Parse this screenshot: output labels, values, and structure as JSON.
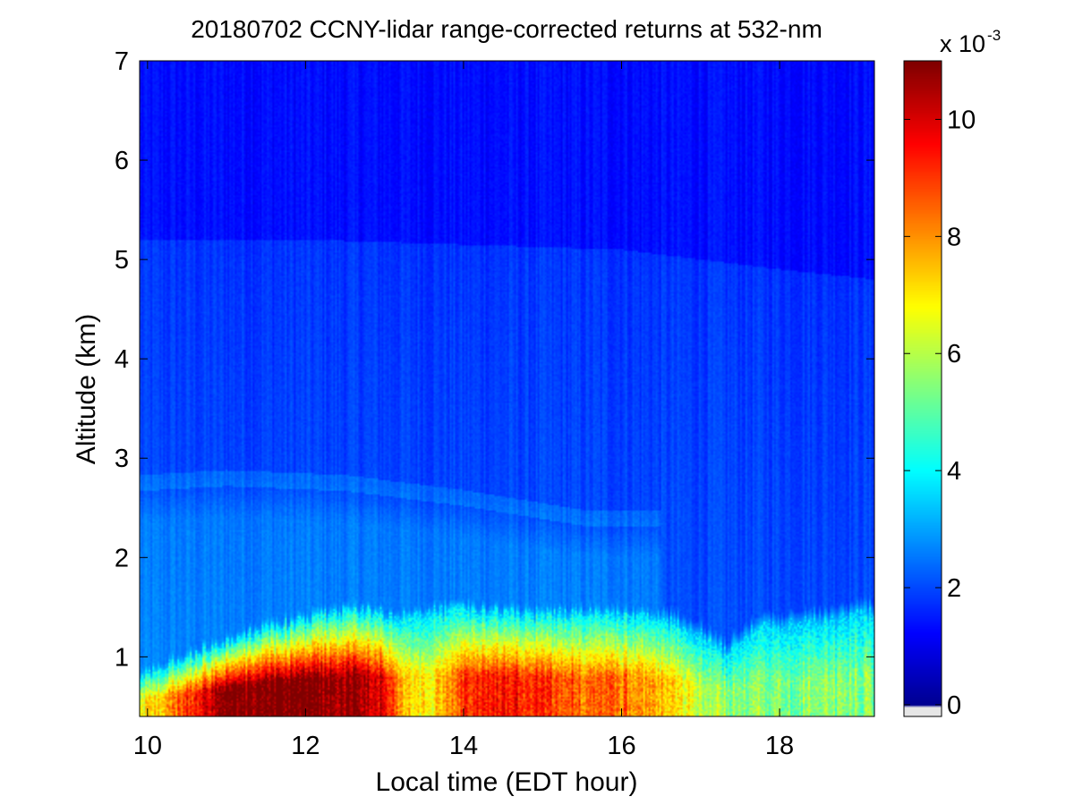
{
  "chart_data": {
    "type": "heatmap",
    "title": "20180702 CCNY-lidar range-corrected returns at 532-nm",
    "xlabel": "Local time (EDT hour)",
    "ylabel": "Altitude (km)",
    "xlim": [
      9.9,
      19.2
    ],
    "ylim": [
      0.4,
      7
    ],
    "x_ticks": [
      "10",
      "12",
      "14",
      "16",
      "18"
    ],
    "x_tick_values": [
      10,
      12,
      14,
      16,
      18
    ],
    "y_ticks": [
      "1",
      "2",
      "3",
      "4",
      "5",
      "6",
      "7"
    ],
    "y_tick_values": [
      1,
      2,
      3,
      4,
      5,
      6,
      7
    ],
    "colorbar": {
      "colormap": "jet",
      "range": [
        -0.0002,
        0.011
      ],
      "ticks": [
        "0",
        "2",
        "4",
        "6",
        "8",
        "10"
      ],
      "tick_values": [
        0,
        2,
        4,
        6,
        8,
        10
      ],
      "exponent_base": "x 10",
      "exponent_power": "-3",
      "low_color": "#e6e6e6"
    },
    "grid": false,
    "boundary_layer_top_km": {
      "times": [
        9.9,
        10.3,
        10.8,
        11.3,
        11.8,
        12.3,
        12.8,
        13.1,
        13.5,
        14.0,
        14.5,
        15.0,
        15.5,
        16.0,
        16.5,
        17.0,
        17.3,
        17.7,
        18.2,
        18.7,
        19.2
      ],
      "heights": [
        0.8,
        0.95,
        1.1,
        1.25,
        1.35,
        1.45,
        1.48,
        1.4,
        1.45,
        1.5,
        1.45,
        1.45,
        1.45,
        1.45,
        1.4,
        1.25,
        1.05,
        1.3,
        1.35,
        1.4,
        1.45
      ]
    },
    "residual_layer_top_km": {
      "times": [
        9.9,
        11.0,
        12.5,
        14.0,
        15.5
      ],
      "heights": [
        2.75,
        2.8,
        2.75,
        2.6,
        2.4
      ]
    },
    "aerosol_layer_top_km": {
      "times": [
        9.9,
        12.0,
        14.0,
        16.0,
        18.0,
        19.2
      ],
      "heights": [
        5.2,
        5.2,
        5.15,
        5.1,
        4.9,
        4.8
      ]
    },
    "surface_layer_peak_x1e3": {
      "times": [
        9.9,
        10.5,
        11.0,
        11.5,
        12.0,
        12.5,
        13.0,
        13.3,
        13.7,
        14.0,
        14.5,
        15.0,
        15.5,
        16.0,
        16.5,
        17.0,
        17.5,
        18.0,
        18.5,
        19.2
      ],
      "values": [
        6.5,
        9.0,
        11.0,
        11.0,
        11.0,
        10.8,
        10.0,
        7.0,
        7.2,
        9.0,
        9.5,
        9.0,
        8.5,
        8.5,
        7.5,
        6.0,
        5.5,
        5.5,
        5.5,
        5.5
      ]
    }
  }
}
